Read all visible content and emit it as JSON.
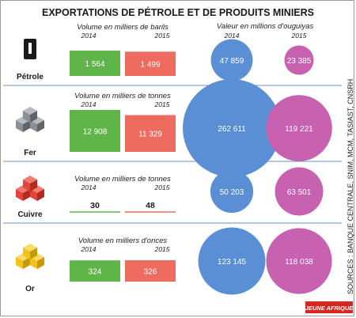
{
  "title": "EXPORTATIONS DE PÉTROLE ET DE PRODUITS MINIERS",
  "value_header": "Valeur en millions d'ouguiyas",
  "sources": "SOURCES : BANQUE CENTRALE, SNIM, MCM, TASIAST, CNSRH",
  "brand": "JEUNE AFRIQUE",
  "colors": {
    "volume_2014": "#5fb547",
    "volume_2015": "#ee6b5f",
    "value_2014": "#5b8fd5",
    "value_2015": "#c761b0",
    "separator": "#6a8fc7"
  },
  "chart_data": {
    "type": "bar",
    "years": [
      "2014",
      "2015"
    ],
    "rows": [
      {
        "product": "Pétrole",
        "icon": "oil-barrel-icon",
        "volume_label": "Volume en milliers de barils",
        "volume": [
          1564,
          1499
        ],
        "volume_text": [
          "1 564",
          "1 499"
        ],
        "value": [
          47859,
          23385
        ],
        "value_text": [
          "47 859",
          "23 385"
        ]
      },
      {
        "product": "Fer",
        "icon": "iron-cubes-icon",
        "volume_label": "Volume en milliers de tonnes",
        "volume": [
          12908,
          11329
        ],
        "volume_text": [
          "12 908",
          "11 329"
        ],
        "value": [
          262611,
          119221
        ],
        "value_text": [
          "262 611",
          "119 221"
        ]
      },
      {
        "product": "Cuivre",
        "icon": "copper-cubes-icon",
        "volume_label": "Volume en milliers de tonnes",
        "volume": [
          30,
          48
        ],
        "volume_text": [
          "30",
          "48"
        ],
        "value": [
          50203,
          63501
        ],
        "value_text": [
          "50 203",
          "63 501"
        ]
      },
      {
        "product": "Or",
        "icon": "gold-cubes-icon",
        "volume_label": "Volume en milliers d'onces",
        "volume": [
          324,
          326
        ],
        "volume_text": [
          "324",
          "326"
        ],
        "value": [
          123145,
          118038
        ],
        "value_text": [
          "123 145",
          "118 038"
        ]
      }
    ]
  }
}
